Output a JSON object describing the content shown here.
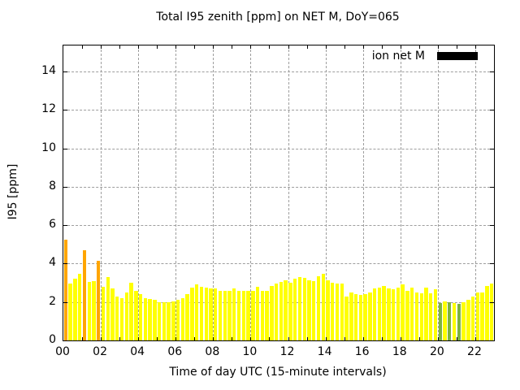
{
  "chart_data": {
    "type": "bar",
    "title": "Total I95 zenith [ppm] on NET M, DoY=065",
    "xlabel": "Time of day UTC (15-minute intervals)",
    "ylabel": "I95 [ppm]",
    "legend": {
      "label": "ion net M",
      "swatch_color": "#000000",
      "position": "top-right-inside"
    },
    "grid": true,
    "grid_color": "#9e9e9e",
    "ylim": [
      0,
      15.35
    ],
    "xlim_hours": [
      0,
      23
    ],
    "y_ticks": [
      0,
      2,
      4,
      6,
      8,
      10,
      12,
      14
    ],
    "x_tick_hours_labeled": [
      0,
      2,
      4,
      6,
      8,
      10,
      12,
      14,
      16,
      18,
      20,
      22
    ],
    "x_tick_labels": [
      "00",
      "02",
      "04",
      "06",
      "08",
      "10",
      "12",
      "14",
      "16",
      "18",
      "20",
      "22"
    ],
    "bar_color_map": {
      "y": "#ffff00",
      "o": "#ffa500",
      "g": "#7cb342"
    },
    "bar_color_codes": "oyyyoyyoyyyyyyyyyyyyyyyyyyyyyyyyyyyyyyyyyyyyyyyyyyyyyyyyyyyyyyyyyyyyyyyyyyyyyyyygygygyyyyyyy",
    "categories": [
      "00:00",
      "00:15",
      "00:30",
      "00:45",
      "01:00",
      "01:15",
      "01:30",
      "01:45",
      "02:00",
      "02:15",
      "02:30",
      "02:45",
      "03:00",
      "03:15",
      "03:30",
      "03:45",
      "04:00",
      "04:15",
      "04:30",
      "04:45",
      "05:00",
      "05:15",
      "05:30",
      "05:45",
      "06:00",
      "06:15",
      "06:30",
      "06:45",
      "07:00",
      "07:15",
      "07:30",
      "07:45",
      "08:00",
      "08:15",
      "08:30",
      "08:45",
      "09:00",
      "09:15",
      "09:30",
      "09:45",
      "10:00",
      "10:15",
      "10:30",
      "10:45",
      "11:00",
      "11:15",
      "11:30",
      "11:45",
      "12:00",
      "12:15",
      "12:30",
      "12:45",
      "13:00",
      "13:15",
      "13:30",
      "13:45",
      "14:00",
      "14:15",
      "14:30",
      "14:45",
      "15:00",
      "15:15",
      "15:30",
      "15:45",
      "16:00",
      "16:15",
      "16:30",
      "16:45",
      "17:00",
      "17:15",
      "17:30",
      "17:45",
      "18:00",
      "18:15",
      "18:30",
      "18:45",
      "19:00",
      "19:15",
      "19:30",
      "19:45",
      "20:00",
      "20:15",
      "20:30",
      "20:45",
      "21:00",
      "21:15",
      "21:30",
      "21:45",
      "22:00",
      "22:15",
      "22:30",
      "22:45"
    ],
    "values": [
      5.25,
      2.95,
      3.2,
      3.45,
      4.7,
      3.05,
      3.1,
      4.15,
      2.8,
      3.3,
      2.7,
      2.3,
      2.2,
      2.5,
      3.0,
      2.6,
      2.4,
      2.2,
      2.15,
      2.1,
      2.0,
      2.0,
      2.0,
      2.05,
      2.1,
      2.2,
      2.4,
      2.75,
      2.9,
      2.8,
      2.75,
      2.7,
      2.7,
      2.6,
      2.6,
      2.6,
      2.7,
      2.6,
      2.6,
      2.6,
      2.6,
      2.8,
      2.6,
      2.6,
      2.85,
      2.95,
      3.05,
      3.15,
      3.0,
      3.2,
      3.3,
      3.25,
      3.15,
      3.1,
      3.35,
      3.45,
      3.15,
      3.0,
      2.95,
      2.95,
      2.3,
      2.5,
      2.4,
      2.35,
      2.4,
      2.5,
      2.7,
      2.75,
      2.85,
      2.7,
      2.65,
      2.75,
      2.9,
      2.6,
      2.75,
      2.5,
      2.45,
      2.75,
      2.45,
      2.65,
      1.95,
      2.05,
      2.0,
      1.95,
      1.9,
      2.0,
      2.1,
      2.3,
      2.5,
      2.5,
      2.85,
      2.95
    ]
  }
}
